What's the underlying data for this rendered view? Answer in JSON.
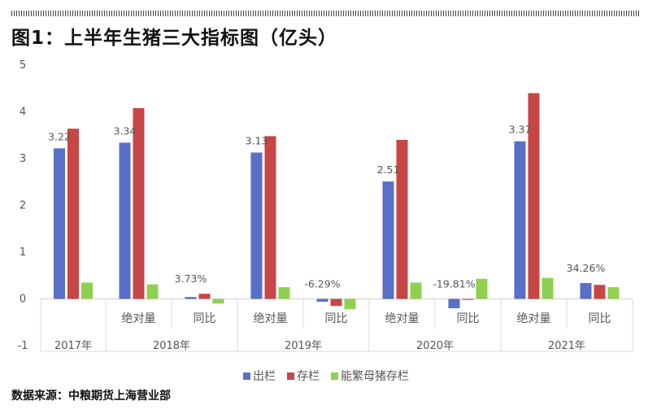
{
  "title": "图1：上半年生猪三大指标图（亿头）",
  "source": "数据来源：中粮期货上海营业部",
  "chart_data": {
    "type": "bar",
    "ylim": [
      -1,
      5
    ],
    "yticks": [
      -1,
      0,
      1,
      2,
      3,
      4,
      5
    ],
    "groups": [
      {
        "year": "2017年",
        "categories": [
          ""
        ]
      },
      {
        "year": "2018年",
        "categories": [
          "绝对量",
          "同比"
        ]
      },
      {
        "year": "2019年",
        "categories": [
          "绝对量",
          "同比"
        ]
      },
      {
        "year": "2020年",
        "categories": [
          "绝对量",
          "同比"
        ]
      },
      {
        "year": "2021年",
        "categories": [
          "绝对量",
          "同比"
        ]
      }
    ],
    "series": [
      {
        "name": "出栏",
        "color": "#5a6fc8",
        "values": [
          3.22,
          3.34,
          0.04,
          3.13,
          -0.06,
          2.51,
          -0.2,
          3.37,
          0.34
        ]
      },
      {
        "name": "存栏",
        "color": "#c84646",
        "values": [
          3.64,
          4.08,
          0.11,
          3.48,
          -0.15,
          3.4,
          -0.02,
          4.4,
          0.3
        ]
      },
      {
        "name": "能繁母猪存栏",
        "color": "#8fd14f",
        "values": [
          0.35,
          0.31,
          -0.1,
          0.25,
          -0.22,
          0.35,
          0.43,
          0.45,
          0.25
        ]
      }
    ],
    "data_labels": [
      {
        "index": 0,
        "text": "3.22"
      },
      {
        "index": 1,
        "text": "3.34"
      },
      {
        "index": 2,
        "text": "3.73%"
      },
      {
        "index": 3,
        "text": "3.13"
      },
      {
        "index": 4,
        "text": "-6.29%"
      },
      {
        "index": 5,
        "text": "2.51"
      },
      {
        "index": 6,
        "text": "-19.81%"
      },
      {
        "index": 7,
        "text": "3.37"
      },
      {
        "index": 8,
        "text": "34.26%"
      }
    ],
    "legend_position": "bottom"
  }
}
